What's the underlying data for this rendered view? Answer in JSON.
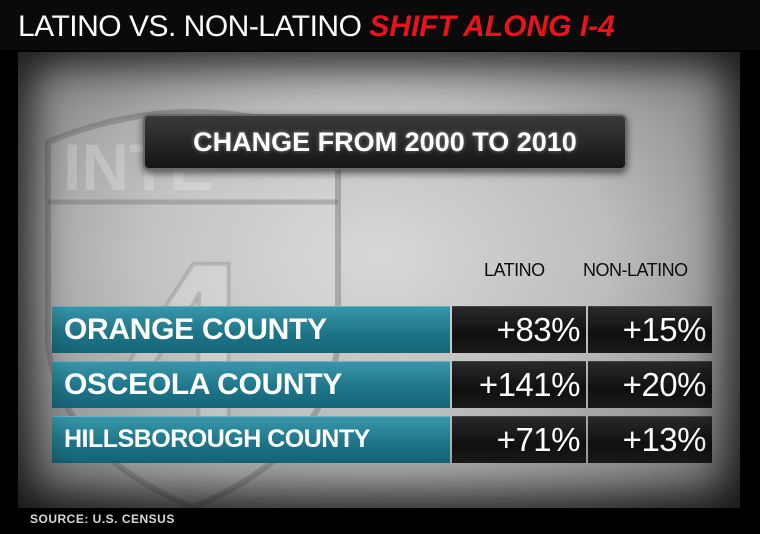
{
  "title": {
    "plain": "LATINO VS. NON-LATINO",
    "highlight": "SHIFT ALONG I-4"
  },
  "banner": "CHANGE FROM 2000 TO 2010",
  "columns": [
    "LATINO",
    "NON-LATINO"
  ],
  "rows": [
    {
      "county": "ORANGE COUNTY",
      "latino": "+83%",
      "non_latino": "+15%"
    },
    {
      "county": "OSCEOLA COUNTY",
      "latino": "+141%",
      "non_latino": "+20%"
    },
    {
      "county": "HILLSBOROUGH COUNTY",
      "latino": "+71%",
      "non_latino": "+13%"
    }
  ],
  "source": "SOURCE: U.S. CENSUS",
  "background_sign": {
    "text": "INTE",
    "number": "4"
  },
  "colors": {
    "highlight": "#e8141c",
    "row_teal": "#1f7689",
    "value_dark": "#101010"
  }
}
